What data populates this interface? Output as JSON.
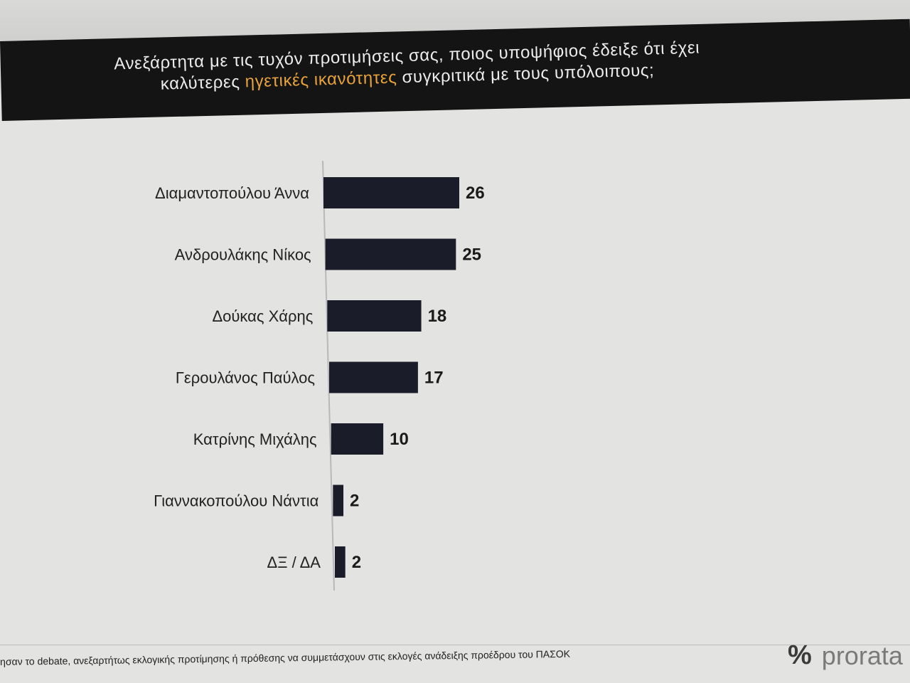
{
  "header": {
    "question_part1": "Ανεξάρτητα με τις τυχόν προτιμήσεις σας, ποιος υποψήφιος έδειξε ότι έχει",
    "question_part2_prefix": "καλύτερες ",
    "question_highlight": "ηγετικές ικανότητες",
    "question_part2_suffix": " συγκριτικά με τους υπόλοιπους;",
    "highlight_color": "#e8a33a",
    "band_color": "#141414"
  },
  "chart_data": {
    "type": "bar",
    "orientation": "horizontal",
    "categories": [
      "Διαμαντοπούλου Άννα",
      "Ανδρουλάκης Νίκος",
      "Δούκας Χάρης",
      "Γερουλάνος Παύλος",
      "Κατρίνης Μιχάλης",
      "Γιαννακοπούλου Νάντια",
      "ΔΞ / ΔΑ"
    ],
    "values": [
      26,
      25,
      18,
      17,
      10,
      2,
      2
    ],
    "data_labels": [
      "26",
      "25",
      "18",
      "17",
      "10",
      "2",
      "2"
    ],
    "bar_color": "#1b1c2a",
    "xlim": [
      0,
      26
    ],
    "grid": false
  },
  "footer": {
    "note": "ησαν το debate, ανεξαρτήτως εκλογικής προτίμησης ή πρόθεσης να συμμετάσχουν στις εκλογές ανάδειξης προέδρου του ΠΑΣΟΚ",
    "logo_symbol": "%",
    "logo_text": "prorata"
  }
}
